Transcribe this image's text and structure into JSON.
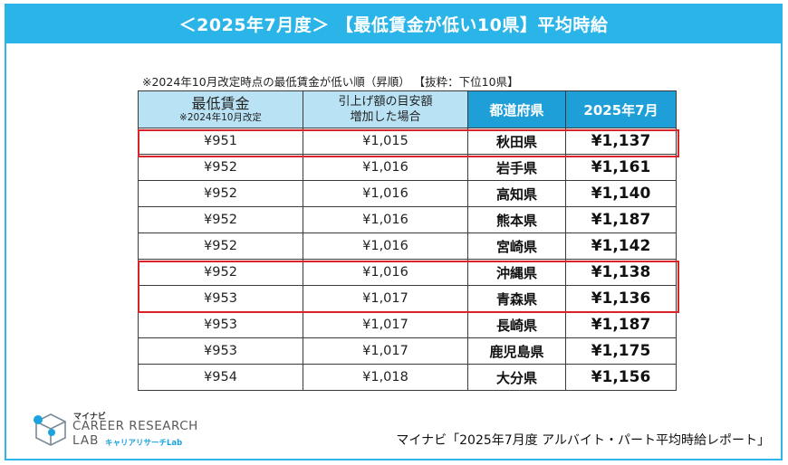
{
  "banner": {
    "title": "＜2025年7月度＞ 【最低賃金が低い10県】平均時給"
  },
  "note": "※2024年10月改定時点の最低賃金が低い順（昇順） 【抜粋：下位10県】",
  "table": {
    "headers": {
      "min_wage": {
        "main": "最低賃金",
        "sub": "※2024年10月改定"
      },
      "raised": {
        "line1": "引上げ額の目安額",
        "line2": "増加した場合"
      },
      "prefecture": "都道府県",
      "july2025": "2025年7月"
    },
    "rows": [
      {
        "min_wage": "¥951",
        "raised": "¥1,015",
        "prefecture": "秋田県",
        "july2025": "¥1,137"
      },
      {
        "min_wage": "¥952",
        "raised": "¥1,016",
        "prefecture": "岩手県",
        "july2025": "¥1,161"
      },
      {
        "min_wage": "¥952",
        "raised": "¥1,016",
        "prefecture": "高知県",
        "july2025": "¥1,140"
      },
      {
        "min_wage": "¥952",
        "raised": "¥1,016",
        "prefecture": "熊本県",
        "july2025": "¥1,187"
      },
      {
        "min_wage": "¥952",
        "raised": "¥1,016",
        "prefecture": "宮崎県",
        "july2025": "¥1,142"
      },
      {
        "min_wage": "¥952",
        "raised": "¥1,016",
        "prefecture": "沖縄県",
        "july2025": "¥1,138"
      },
      {
        "min_wage": "¥953",
        "raised": "¥1,017",
        "prefecture": "青森県",
        "july2025": "¥1,136"
      },
      {
        "min_wage": "¥953",
        "raised": "¥1,017",
        "prefecture": "長崎県",
        "july2025": "¥1,187"
      },
      {
        "min_wage": "¥953",
        "raised": "¥1,017",
        "prefecture": "鹿児島県",
        "july2025": "¥1,175"
      },
      {
        "min_wage": "¥954",
        "raised": "¥1,018",
        "prefecture": "大分県",
        "july2025": "¥1,156"
      }
    ]
  },
  "logo": {
    "brand_small": "マイナビ",
    "line1": "CAREER RESEARCH",
    "line2": "LAB",
    "kana": "キャリアリサーチLab"
  },
  "source": "マイナビ「2025年7月度 アルバイト・パート平均時給レポート」",
  "colors": {
    "accent": "#2ab4e8",
    "header_dark": "#1e9fd8",
    "header_light": "#b9e3f5",
    "highlight": "#d8232a"
  }
}
